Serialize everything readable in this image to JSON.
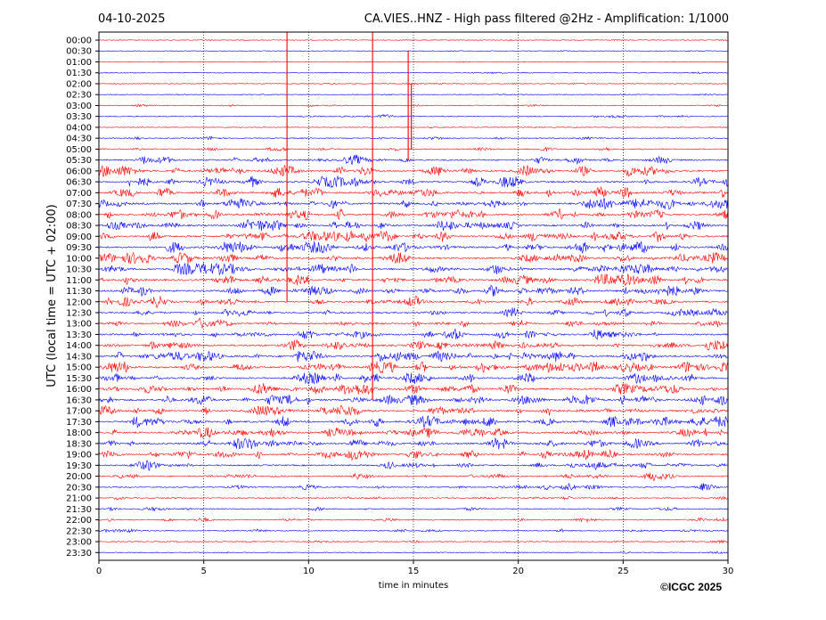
{
  "chart_data": {
    "type": "line",
    "date": "04-10-2025",
    "title": "CA.VIES..HNZ - High pass filtered @2Hz - Amplification: 1/1000",
    "xlabel": "time in minutes",
    "ylabel": "UTC (local time = UTC + 02:00)",
    "copyright": "©ICGC 2025",
    "xlim": [
      0,
      30
    ],
    "x_ticks": [
      "0",
      "5",
      "10",
      "15",
      "20",
      "25",
      "30"
    ],
    "x_tick_values": [
      0,
      5,
      10,
      15,
      20,
      25,
      30
    ],
    "grid_x_values": [
      5,
      10,
      15,
      20,
      25
    ],
    "grid": true,
    "series_colors": {
      "even": "#ff0000",
      "odd": "#0000ff"
    },
    "rows": [
      "00:00",
      "00:30",
      "01:00",
      "01:30",
      "02:00",
      "02:30",
      "03:00",
      "03:30",
      "04:00",
      "04:30",
      "05:00",
      "05:30",
      "06:00",
      "06:30",
      "07:00",
      "07:30",
      "08:00",
      "08:30",
      "09:00",
      "09:30",
      "10:00",
      "10:30",
      "11:00",
      "11:30",
      "12:00",
      "12:30",
      "13:00",
      "13:30",
      "14:00",
      "14:30",
      "15:00",
      "15:30",
      "16:00",
      "16:30",
      "17:00",
      "17:30",
      "18:00",
      "18:30",
      "19:00",
      "19:30",
      "20:00",
      "20:30",
      "21:00",
      "21:30",
      "22:00",
      "22:30",
      "23:00",
      "23:30"
    ],
    "activity_level": [
      0.05,
      0.05,
      0.05,
      0.1,
      0.1,
      0.1,
      0.15,
      0.2,
      0.1,
      0.2,
      0.3,
      0.6,
      0.8,
      0.8,
      0.8,
      0.9,
      0.8,
      0.8,
      0.9,
      0.9,
      0.8,
      0.9,
      0.9,
      0.9,
      0.7,
      0.6,
      0.6,
      0.7,
      0.8,
      0.9,
      0.9,
      0.8,
      0.9,
      0.9,
      0.8,
      0.9,
      0.8,
      0.8,
      0.7,
      0.6,
      0.5,
      0.4,
      0.3,
      0.3,
      0.3,
      0.3,
      0.2,
      0.1
    ],
    "spikes": [
      {
        "row": "00:00",
        "minute": 8.97,
        "up_rows": 1,
        "down_rows": 24,
        "color": "#ff0000"
      },
      {
        "row": "00:00",
        "minute": 13.05,
        "up_rows": 1,
        "down_rows": 33,
        "color": "#ff0000"
      },
      {
        "row": "03:00",
        "minute": 14.75,
        "up_rows": 5,
        "down_rows": 5,
        "color": "#ff0000"
      },
      {
        "row": "02:00",
        "minute": 14.9,
        "up_rows": 0,
        "down_rows": 6,
        "color": "#ff0000"
      }
    ]
  }
}
